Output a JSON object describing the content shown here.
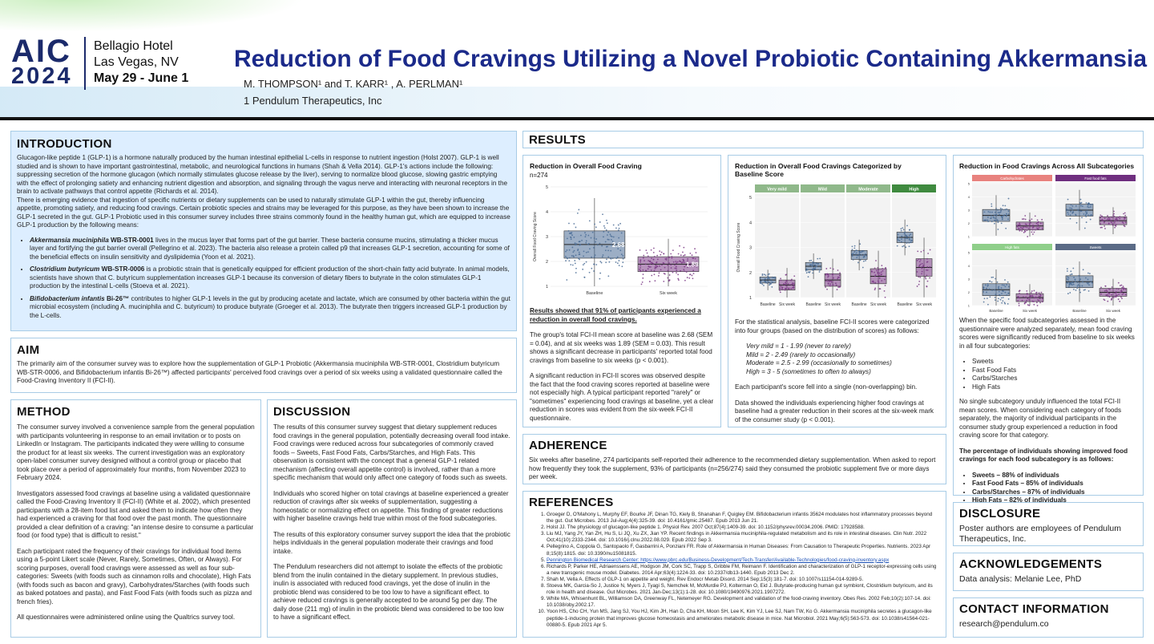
{
  "header": {
    "logo_aic": "AIC",
    "logo_year": "2024",
    "venue_line1": "Bellagio Hotel",
    "venue_line2": "Las Vegas, NV",
    "dates": "May 29 - June 1",
    "title": "Reduction of Food Cravings Utilizing a Novel Probiotic Containing Akkermansia",
    "authors": "M. THOMPSON¹ and T. KARR¹ , A. PERLMAN¹",
    "affiliation": "1 Pendulum Therapeutics, Inc"
  },
  "intro": {
    "heading": "INTRODUCTION",
    "p1": "Glucagon-like peptide 1 (GLP-1) is a hormone naturally produced by the human intestinal epithelial L-cells in response to nutrient ingestion (Holst 2007). GLP-1 is well studied and is shown to have important gastrointestinal, metabolic, and neurological functions in humans (Shah & Vella 2014). GLP-1's actions include the following: suppressing secretion of the hormone glucagon (which normally stimulates glucose release by the liver), serving to normalize blood glucose, slowing gastric emptying with the effect of prolonging satiety and enhancing nutrient digestion and absorption, and signaling through the vagus nerve and interacting with neuronal receptors in the brain to activate pathways that control appetite (Richards et al. 2014).",
    "p2": "There is emerging evidence that ingestion of specific nutrients or dietary supplements can be used to naturally stimulate GLP-1 within the gut, thereby influencing appetite, promoting satiety, and reducing food cravings. Certain probiotic species and strains may be leveraged for this purpose, as they have been shown to increase the GLP-1 secreted in the gut. GLP-1 Probiotic used in this consumer survey includes three strains commonly found in the healthy human gut, which are equipped to increase GLP-1 production by the following means:",
    "b1_strain": "Akkermansia muciniphila",
    "b1_id": " WB-STR-0001",
    "b1_text": " lives in the mucus layer that forms part of the gut barrier. These bacteria consume mucins, stimulating a thicker mucus layer and fortifying the gut barrier overall (Pellegrino et al. 2023). The bacteria also release a protein called p9 that increases GLP-1 secretion, accounting for some of the beneficial effects on insulin sensitivity and dyslipidemia (Yoon et al. 2021).",
    "b2_strain": "Clostridium butyricum",
    "b2_id": " WB-STR-0006",
    "b2_text": " is a probiotic strain that is genetically equipped for efficient production of the short-chain fatty acid butyrate. In animal models, scientists have shown that C. butyricum supplementation increases GLP-1 because its conversion of dietary fibers to butyrate in the colon stimulates GLP-1 production by the intestinal L-cells (Stoeva et al. 2021).",
    "b3_strain": "Bifidobacterium infantis",
    "b3_id": " Bi-26™",
    "b3_text": " contributes to higher GLP-1 levels in the gut by producing acetate and lactate, which are consumed by other bacteria within the gut microbial ecosystem (including A. muciniphila and C. butyricum) to produce butyrate (Groeger et al. 2013). The butyrate then triggers increased GLP-1 production by the L-cells."
  },
  "aim": {
    "heading": "AIM",
    "text": "The primarily aim of the consumer survey was to explore how the supplementation of GLP-1 Probiotic (Akkermansia muciniphila WB-STR-0001, Clostridium butyricum WB-STR-0006, and Bifidobacterium infantis Bi-26™) affected participants' perceived food cravings over a period of six weeks using a validated questionnaire called the Food-Craving Inventory II (FCI-II)."
  },
  "method": {
    "heading": "METHOD",
    "p1": "The consumer survey involved a convenience sample from the general population with participants volunteering in response to an email invitation or to posts on LinkedIn or Instagram. The participants indicated they were willing to consume the product for at least six weeks. The current investigation was an exploratory open-label consumer survey designed without a control group or placebo that took place over a period of approximately four months, from November 2023 to February 2024.",
    "p2": "Investigators assessed food cravings at baseline using a validated questionnaire called the Food-Craving Inventory II (FCI-II) (White et al. 2002), which presented participants with a 28-item food list and asked them to indicate how often they had experienced a craving for that food over the past month. The questionnaire provided a clear definition of a craving: \"an intense desire to consume a particular food (or food type) that is difficult to resist.\"",
    "p3": "Each participant rated the frequency of their cravings for individual food items using a 5-point Likert scale (Never, Rarely, Sometimes, Often, or Always). For scoring purposes, overall food cravings were assessed as well as four sub-categories: Sweets (with foods such as cinnamon rolls and chocolate), High Fats (with foods such as bacon and gravy), Carbohydrates/Starches (with foods such as baked potatoes and pasta), and Fast Food Fats (with foods such as pizza and french fries).",
    "p4": "All questionnaires were administered online using the Qualtrics survey tool."
  },
  "discussion": {
    "heading": "DISCUSSION",
    "p1": "The results of this consumer survey suggest that dietary supplement reduces food cravings in the general population, potentially decreasing overall food intake. Food cravings were reduced across four subcategories of commonly craved foods – Sweets, Fast Food Fats, Carbs/Starches, and High Fats. This observation is consistent with the concept that a general GLP-1 related mechanism (affecting overall appetite control) is involved, rather than a more specific mechanism that would only affect one category of foods such as sweets.",
    "p2": "Individuals who scored higher on total cravings at baseline experienced a greater reduction of cravings after six weeks of supplementation, suggesting a homeostatic or normalizing effect on appetite. This finding of greater reductions with higher baseline cravings held true within most of the food subcategories.",
    "p3": "The results of this exploratory consumer survey support the idea that the probiotic helps individuals in the general population moderate their cravings and food intake.",
    "p4": "The Pendulum researchers did not attempt to isolate the effects of the probiotic blend from the inulin contained in the dietary supplement. In previous studies, inulin is associated with reduced food cravings, yet the dose of inulin in the probiotic blend was considered to be too low to have a significant effect. to achieve reduced cravings is generally accepted to be around 5g per day. The daily dose (211 mg) of inulin in the probiotic blend was considered to be too low to have a significant effect."
  },
  "results": {
    "heading": "RESULTS",
    "col1_headline": "Results showed that 91% of participants experienced a reduction in overall food cravings.",
    "col1_p1": "The group's total FCI-II mean score at baseline was 2.68 (SEM = 0.04), and at six weeks was 1.89 (SEM = 0.03). This result shows a significant decrease in participants' reported total food cravings from baseline to six weeks (p < 0.001).",
    "col1_p2": "A significant reduction in FCI-II scores was observed despite the fact that the food craving scores reported at baseline were not especially high. A typical participant reported \"rarely\" or \"sometimes\" experiencing food cravings at baseline, yet a clear reduction in scores was evident from the six-week FCI-II questionnaire.",
    "col2_p1": "For the statistical analysis, baseline FCI-II scores were categorized into four groups (based on the distribution of scores) as follows:",
    "groups": [
      "Very mild = 1 - 1.99 (never to rarely)",
      "Mild = 2 - 2.49 (rarely to occasionally)",
      "Moderate = 2.5 - 2.99 (occasionally to sometimes)",
      "High = 3 - 5 (sometimes to often to always)"
    ],
    "col2_p2": "Each participant's score fell into a single (non-overlapping) bin.",
    "col2_p3": "Data showed the individuals experiencing higher food cravings at baseline had a greater reduction in their scores at the six-week mark of the consumer study (p < 0.001).",
    "col3_p1": "When the specific food subcategories assessed in the questionnaire were analyzed separately, mean food craving scores were significantly reduced from baseline to six weeks in all four subcategories:",
    "col3_list": [
      "Sweets",
      "Fast Food Fats",
      "Carbs/Starches",
      "High Fats"
    ],
    "col3_p2": "No single subcategory unduly influenced the total FCI-II mean scores. When considering each category of foods separately, the majority of individual participants in the consumer study group experienced a reduction in food craving score for that category.",
    "col3_p3": "The percentage of individuals showing improved food cravings for each food subcategory is as follows:",
    "col3_pct": [
      "Sweets – 88% of individuals",
      "Fast Food Fats – 85% of individuals",
      "Carbs/Starches – 87% of individuals",
      "High Fats – 82% of individuals"
    ]
  },
  "chart_data": [
    {
      "type": "box",
      "title": "Reduction in Overall Food Craving",
      "subtitle": "n=274",
      "ylabel": "Overall Food Craving Score",
      "ylim": [
        1,
        5
      ],
      "categories": [
        "Baseline",
        "Six week"
      ],
      "means": [
        2.68,
        1.89
      ],
      "mean_labels": [
        "2.68",
        "1.89"
      ],
      "colors": [
        "#4a6c95",
        "#7b3a86"
      ]
    },
    {
      "type": "box",
      "title": "Reduction in Overall Food Cravings Categorized by Baseline Score",
      "ylabel": "Overall Food Craving Score",
      "ylim": [
        1,
        5
      ],
      "panels": [
        "Very mild",
        "Mild",
        "Moderate",
        "High"
      ],
      "panel_colors": [
        "#8fb88a",
        "#8fb88a",
        "#8fb88a",
        "#3f8a3f"
      ],
      "categories": [
        "Baseline",
        "Six week"
      ],
      "medians": [
        [
          1.7,
          1.5
        ],
        [
          2.25,
          1.7
        ],
        [
          2.7,
          1.85
        ],
        [
          3.4,
          2.2
        ]
      ],
      "colors": [
        "#4a6c95",
        "#7b3a86"
      ]
    },
    {
      "type": "box",
      "title": "Reduction in Food Cravings Across All Subcategories",
      "ylim": [
        1,
        5
      ],
      "panels": [
        "Carbohydrates",
        "Fast food fats",
        "High fats",
        "Sweets"
      ],
      "panel_colors": [
        "#e8827e",
        "#6f2f7f",
        "#8fcf8a",
        "#5b6b86"
      ],
      "categories": [
        "Baseline",
        "Six week"
      ],
      "medians": [
        [
          2.6,
          1.8
        ],
        [
          3.0,
          2.2
        ],
        [
          2.2,
          1.6
        ],
        [
          2.8,
          2.0
        ]
      ],
      "colors": [
        "#4a6c95",
        "#7b3a86"
      ]
    }
  ],
  "adherence": {
    "heading": "ADHERENCE",
    "text": "Six weeks after baseline, 274 participants self-reported their adherence to the recommended dietary supplementation. When asked to report how frequently they took the supplement, 93% of participants (n=256/274) said they consumed the probiotic supplement five or more days per week."
  },
  "references": {
    "heading": "REFERENCES",
    "items": [
      "Groeger D, O'Mahony L, Murphy EF, Bourke JF, Dinan TG, Kiely B, Shanahan F, Quigley EM. Bifidobacterium infantis 35624 modulates host inflammatory processes beyond the gut. Gut Microbes. 2013 Jul-Aug;4(4):325-39. doi: 10.4161/gmic.25487. Epub 2013 Jun 21.",
      "Holst JJ. The physiology of glucagon-like peptide 1. Physiol Rev. 2007 Oct;87(4):1409-39. doi: 10.1152/physrev.00034.2006. PMID: 17928588.",
      "Liu MJ, Yang JY, Yan ZH, Hu S, Li JQ, Xu ZX, Jian YP. Recent findings in Akkermansia muciniphila-regulated metabolism and its role in intestinal diseases. Clin Nutr. 2022 Oct;41(10):2333-2344. doi: 10.1016/j.clnu.2022.08.029. Epub 2022 Sep 3.",
      "Pellegrino A, Coppola G, Santopaolo F, Gasbarrini A, Ponziani FR. Role of Akkermansia in Human Diseases: From Causation to Therapeutic Properties. Nutrients. 2023 Apr 8;15(8):1815. doi: 10.3390/nu15081815.",
      "Pennington Biomedical Research Center: https://www.pbrc.edu/Business-Development/Tech-Transfer/Available-Technologies/food-craving-inventory.aspx",
      "Richards P, Parker HE, Adriaenssens AE, Hodgson JM, Cork SC, Trapp S, Gribble FM, Reimann F. Identification and characterization of GLP-1 receptor-expressing cells using a new transgenic mouse model. Diabetes. 2014 Apr;63(4):1224-33. doi: 10.2337/db13-1440. Epub 2013 Dec 2.",
      "Shah M, Vella A. Effects of GLP-1 on appetite and weight. Rev Endocr Metab Disord. 2014 Sep;15(3):181-7. doi: 10.1007/s11154-014-9289-5.",
      "Stoeva MK, Garcia-So J, Justice N, Myers J, Tyagi S, Nemchek M, McMurdie PJ, Kolterman O, Eid J. Butyrate-producing human gut symbiont, Clostridium butyricum, and its role in health and disease. Gut Microbes. 2021 Jan-Dec;13(1):1-28. doi: 10.1080/19490976.2021.1907272.",
      "White MA, Whisenhunt BL, Williamson DA, Greenway FL, Netemeyer RG. Development and validation of the food-craving inventory. Obes Res. 2002 Feb;10(2):107-14. doi: 10.1038/oby.2002.17.",
      "Yoon HS, Cho CH, Yun MS, Jang SJ, You HJ, Kim JH, Han D, Cha KH, Moon SH, Lee K, Kim YJ, Lee SJ, Nam TW, Ko G. Akkermansia muciniphila secretes a glucagon-like peptide-1-inducing protein that improves glucose homeostasis and ameliorates metabolic disease in mice. Nat Microbiol. 2021 May;6(5):563-573. doi: 10.1038/s41564-021-00880-5. Epub 2021 Apr 5."
    ]
  },
  "disclosure": {
    "heading": "DISCLOSURE",
    "text": "Poster authors are employees of Pendulum Therapeutics, Inc."
  },
  "acknowledgements": {
    "heading": "ACKNOWLEDGEMENTS",
    "text": "Data analysis: Melanie Lee, PhD"
  },
  "contact": {
    "heading": "CONTACT INFORMATION",
    "email": "research@pendulum.co"
  }
}
